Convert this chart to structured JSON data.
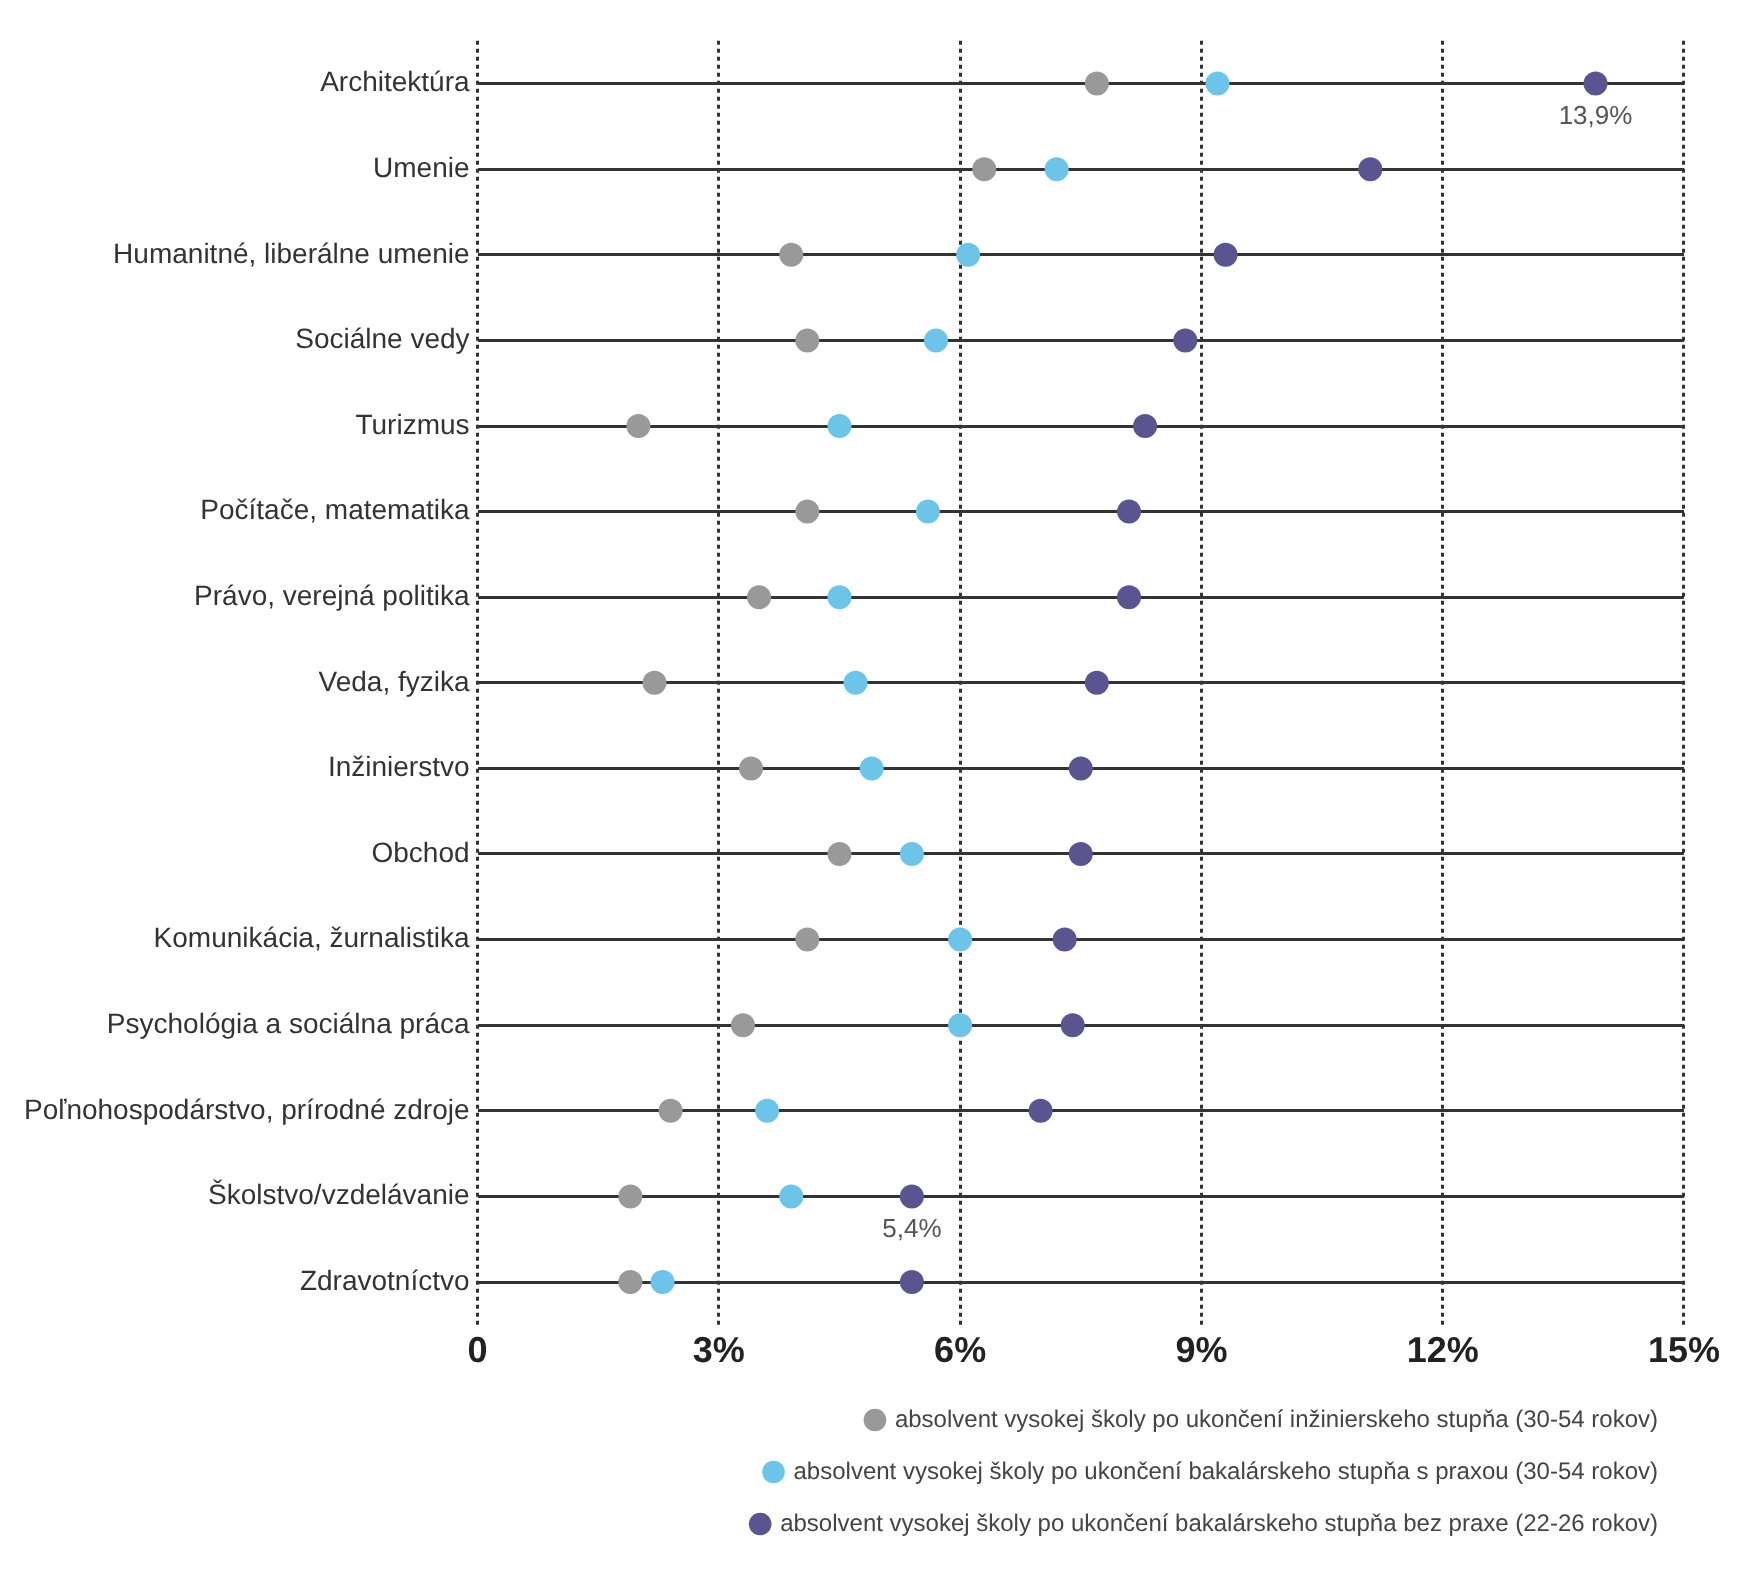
{
  "chart_data": {
    "type": "scatter",
    "orientation": "horizontal",
    "marker": "circle",
    "categories": [
      "Architektúra",
      "Umenie",
      "Humanitné, liberálne umenie",
      "Sociálne vedy",
      "Turizmus",
      "Počítače, matematika",
      "Právo, verejná politika",
      "Veda, fyzika",
      "Inžinierstvo",
      "Obchod",
      "Komunikácia, žurnalistika",
      "Psychológia a sociálna práca",
      "Poľnohospodárstvo, prírodné zdroje",
      "Školstvo/vzdelávanie",
      "Zdravotníctvo"
    ],
    "series": [
      {
        "name": "absolvent vysokej školy po ukončení inžinierskeho stupňa (30-54 rokov)",
        "color": "#999999",
        "values": [
          7.7,
          6.3,
          3.9,
          4.1,
          2.0,
          4.1,
          3.5,
          2.2,
          3.4,
          4.5,
          4.1,
          3.3,
          2.4,
          1.9,
          1.9
        ]
      },
      {
        "name": "absolvent vysokej školy po ukončení bakalárskeho stupňa s praxou (30-54 rokov)",
        "color": "#6cc5e9",
        "values": [
          9.2,
          7.2,
          6.1,
          5.7,
          4.5,
          5.6,
          4.5,
          4.7,
          4.9,
          5.4,
          6.0,
          6.0,
          3.6,
          3.9,
          2.3
        ]
      },
      {
        "name": "absolvent vysokej školy po ukončení bakalárskeho stupňa bez praxe (22-26 rokov)",
        "color": "#5a5591",
        "values": [
          13.9,
          11.1,
          9.3,
          8.8,
          8.3,
          8.1,
          8.1,
          7.7,
          7.5,
          7.5,
          7.3,
          7.4,
          7.0,
          5.4,
          5.4
        ]
      }
    ],
    "xlim": [
      0,
      15
    ],
    "xticks": [
      0,
      {
        "value": 3,
        "label": "3%"
      },
      {
        "value": 6,
        "label": "6%"
      },
      {
        "value": 9,
        "label": "9%"
      },
      {
        "value": 12,
        "label": "12%"
      },
      {
        "value": 15,
        "label": "15%"
      }
    ],
    "grid": true,
    "legend": "bottom",
    "annotations": [
      {
        "text": "13,9%",
        "x": 13.9,
        "y": "Architektúra"
      },
      {
        "text": "5,4%",
        "x": 5.4,
        "y": "Školstvo/vzdelávanie"
      }
    ]
  }
}
